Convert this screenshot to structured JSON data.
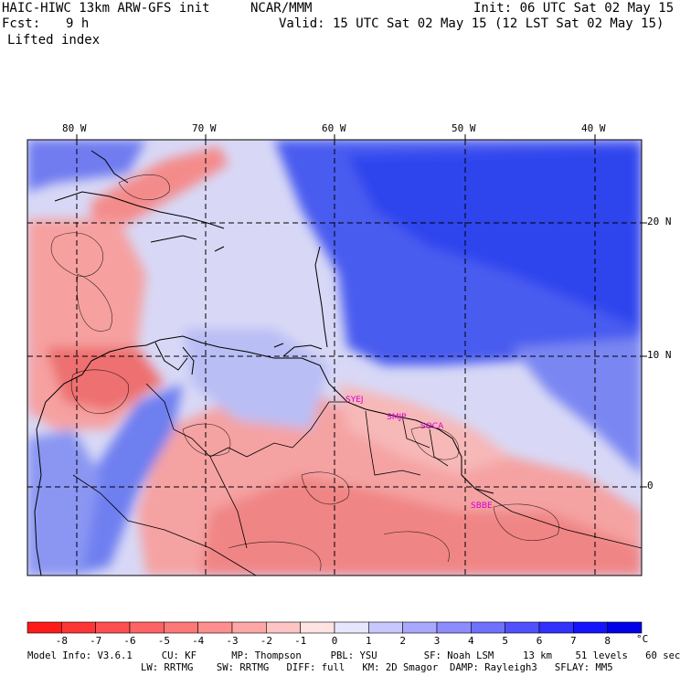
{
  "header": {
    "title_left": "HAIC-HIWC 13km ARW-GFS init",
    "org": "NCAR/MMM",
    "init": "Init: 06 UTC Sat 02 May 15",
    "fcst_label": "Fcst:",
    "fcst_value": "9 h",
    "valid": "Valid: 15 UTC Sat 02 May 15 (12 LST Sat 02 May 15)",
    "field": "Lifted index"
  },
  "map": {
    "lon_labels": [
      "80 W",
      "70 W",
      "60 W",
      "50 W",
      "40 W"
    ],
    "lat_labels": [
      "20 N",
      "10 N",
      "0"
    ],
    "station_labels": [
      "SYEJ",
      "SMJP",
      "SOCA",
      "SBBE"
    ]
  },
  "colorbar": {
    "ticks": [
      "-8",
      "-7",
      "-6",
      "-5",
      "-4",
      "-3",
      "-2",
      "-1",
      "0",
      "1",
      "2",
      "3",
      "4",
      "5",
      "6",
      "7",
      "8"
    ],
    "unit": "°C",
    "colors": [
      "#ff1a1a",
      "#ff3535",
      "#ff4f4f",
      "#ff6363",
      "#ff7878",
      "#ff8e8e",
      "#ffa6a6",
      "#ffc4c4",
      "#ffe2e2",
      "#e6e6ff",
      "#c8c8ff",
      "#a8a8ff",
      "#8c8cff",
      "#7070ff",
      "#5050ff",
      "#3232ff",
      "#1414ff",
      "#0000e6"
    ]
  },
  "footer": {
    "line1": "Model Info: V3.6.1     CU: KF      MP: Thompson     PBL: YSU        SF: Noah LSM     13 km    51 levels   60 sec",
    "line2": "LW: RRTMG    SW: RRTMG   DIFF: full   KM: 2D Smagor  DAMP: Rayleigh3   SFLAY: MM5"
  }
}
